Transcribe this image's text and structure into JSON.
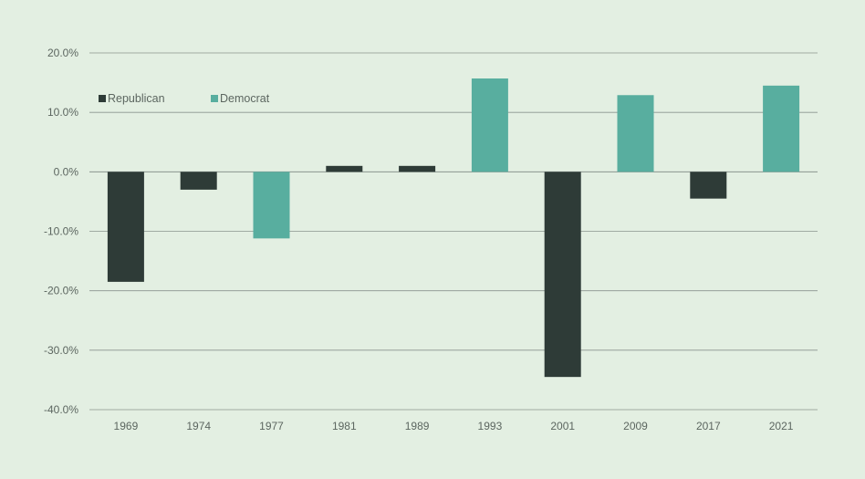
{
  "chart_data": {
    "type": "bar",
    "categories": [
      "1969",
      "1974",
      "1977",
      "1981",
      "1989",
      "1993",
      "2001",
      "2009",
      "2017",
      "2021"
    ],
    "values": [
      -18.5,
      -3.0,
      -11.2,
      1.0,
      1.0,
      15.7,
      -34.5,
      12.9,
      -4.5,
      14.5
    ],
    "party": [
      "Republican",
      "Republican",
      "Democrat",
      "Republican",
      "Republican",
      "Democrat",
      "Republican",
      "Democrat",
      "Republican",
      "Democrat"
    ],
    "ylim": [
      -40,
      20
    ],
    "yticks": [
      20,
      10,
      0,
      -10,
      -20,
      -30,
      -40
    ],
    "ytick_labels": [
      "20.0%",
      "10.0%",
      "0.0%",
      "-10.0%",
      "-20.0%",
      "-30.0%",
      "-40.0%"
    ],
    "grid": true,
    "legend": {
      "placement": "top-left",
      "entries": [
        {
          "name": "Republican",
          "color": "#2e3b37"
        },
        {
          "name": "Democrat",
          "color": "#58ae9f"
        }
      ]
    },
    "title": "",
    "xlabel": "",
    "ylabel": ""
  },
  "colors": {
    "background": "#e3efe2",
    "gridline": "#8a948e",
    "tick_text": "#5c6660"
  }
}
